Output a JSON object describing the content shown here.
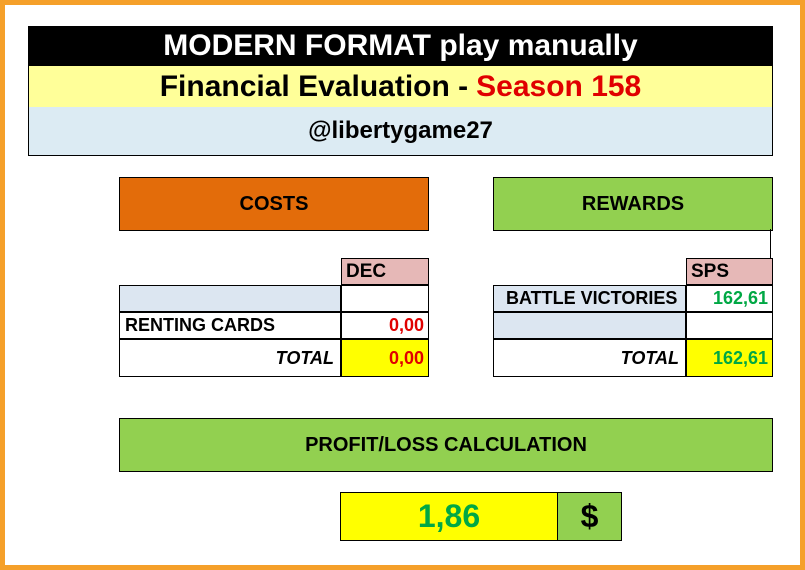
{
  "header": {
    "title": "MODERN FORMAT play manually",
    "subtitle_prefix": "Financial Evaluation -",
    "season": "Season 158",
    "handle": "@libertygame27"
  },
  "costs": {
    "header": "COSTS",
    "unit": "DEC",
    "rows": [
      {
        "label": "",
        "value": ""
      },
      {
        "label": "RENTING CARDS",
        "value": "0,00"
      }
    ],
    "total_label": "TOTAL",
    "total_value": "0,00"
  },
  "rewards": {
    "header": "REWARDS",
    "unit": "SPS",
    "rows": [
      {
        "label": "BATTLE VICTORIES",
        "value": "162,61"
      },
      {
        "label": "",
        "value": ""
      }
    ],
    "total_label": "TOTAL",
    "total_value": "162,61"
  },
  "profit": {
    "header": "PROFIT/LOSS CALCULATION",
    "value": "1,86",
    "currency": "$"
  },
  "colors": {
    "frame": "#f5a02a",
    "costs": "#e36c0a",
    "rewards": "#92d050",
    "highlight": "#ffff00",
    "negative_text": "#e00000",
    "positive_text": "#00a844"
  }
}
